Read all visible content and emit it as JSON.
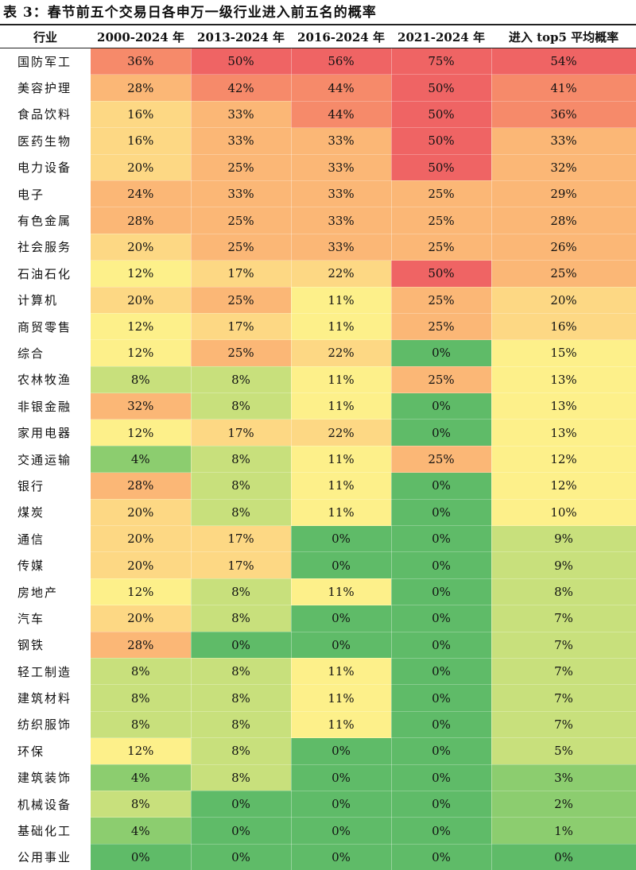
{
  "title": "表 3：春节前五个交易日各申万一级行业进入前五名的概率",
  "headers": [
    "行业",
    "2000-2024 年",
    "2013-2024 年",
    "2016-2024 年",
    "2021-2024 年",
    "进入 top5 平均概率"
  ],
  "rows": [
    {
      "industry": "国防军工",
      "values": [
        "36%",
        "50%",
        "56%",
        "75%",
        "54%"
      ]
    },
    {
      "industry": "美容护理",
      "values": [
        "28%",
        "42%",
        "44%",
        "50%",
        "41%"
      ]
    },
    {
      "industry": "食品饮料",
      "values": [
        "16%",
        "33%",
        "44%",
        "50%",
        "36%"
      ]
    },
    {
      "industry": "医药生物",
      "values": [
        "16%",
        "33%",
        "33%",
        "50%",
        "33%"
      ]
    },
    {
      "industry": "电力设备",
      "values": [
        "20%",
        "25%",
        "33%",
        "50%",
        "32%"
      ]
    },
    {
      "industry": "电子",
      "values": [
        "24%",
        "33%",
        "33%",
        "25%",
        "29%"
      ]
    },
    {
      "industry": "有色金属",
      "values": [
        "28%",
        "25%",
        "33%",
        "25%",
        "28%"
      ]
    },
    {
      "industry": "社会服务",
      "values": [
        "20%",
        "25%",
        "33%",
        "25%",
        "26%"
      ]
    },
    {
      "industry": "石油石化",
      "values": [
        "12%",
        "17%",
        "22%",
        "50%",
        "25%"
      ]
    },
    {
      "industry": "计算机",
      "values": [
        "20%",
        "25%",
        "11%",
        "25%",
        "20%"
      ]
    },
    {
      "industry": "商贸零售",
      "values": [
        "12%",
        "17%",
        "11%",
        "25%",
        "16%"
      ]
    },
    {
      "industry": "综合",
      "values": [
        "12%",
        "25%",
        "22%",
        "0%",
        "15%"
      ]
    },
    {
      "industry": "农林牧渔",
      "values": [
        "8%",
        "8%",
        "11%",
        "25%",
        "13%"
      ]
    },
    {
      "industry": "非银金融",
      "values": [
        "32%",
        "8%",
        "11%",
        "0%",
        "13%"
      ]
    },
    {
      "industry": "家用电器",
      "values": [
        "12%",
        "17%",
        "22%",
        "0%",
        "13%"
      ]
    },
    {
      "industry": "交通运输",
      "values": [
        "4%",
        "8%",
        "11%",
        "25%",
        "12%"
      ]
    },
    {
      "industry": "银行",
      "values": [
        "28%",
        "8%",
        "11%",
        "0%",
        "12%"
      ]
    },
    {
      "industry": "煤炭",
      "values": [
        "20%",
        "8%",
        "11%",
        "0%",
        "10%"
      ]
    },
    {
      "industry": "通信",
      "values": [
        "20%",
        "17%",
        "0%",
        "0%",
        "9%"
      ]
    },
    {
      "industry": "传媒",
      "values": [
        "20%",
        "17%",
        "0%",
        "0%",
        "9%"
      ]
    },
    {
      "industry": "房地产",
      "values": [
        "12%",
        "8%",
        "11%",
        "0%",
        "8%"
      ]
    },
    {
      "industry": "汽车",
      "values": [
        "20%",
        "8%",
        "0%",
        "0%",
        "7%"
      ]
    },
    {
      "industry": "钢铁",
      "values": [
        "28%",
        "0%",
        "0%",
        "0%",
        "7%"
      ]
    },
    {
      "industry": "轻工制造",
      "values": [
        "8%",
        "8%",
        "11%",
        "0%",
        "7%"
      ]
    },
    {
      "industry": "建筑材料",
      "values": [
        "8%",
        "8%",
        "11%",
        "0%",
        "7%"
      ]
    },
    {
      "industry": "纺织服饰",
      "values": [
        "8%",
        "8%",
        "11%",
        "0%",
        "7%"
      ]
    },
    {
      "industry": "环保",
      "values": [
        "12%",
        "8%",
        "0%",
        "0%",
        "5%"
      ]
    },
    {
      "industry": "建筑装饰",
      "values": [
        "4%",
        "8%",
        "0%",
        "0%",
        "3%"
      ]
    },
    {
      "industry": "机械设备",
      "values": [
        "8%",
        "0%",
        "0%",
        "0%",
        "2%"
      ]
    },
    {
      "industry": "基础化工",
      "values": [
        "4%",
        "0%",
        "0%",
        "0%",
        "1%"
      ]
    },
    {
      "industry": "公用事业",
      "values": [
        "0%",
        "0%",
        "0%",
        "0%",
        "0%"
      ]
    }
  ],
  "colors": {
    "red": "#ef6464",
    "orange_red": "#f68a6a",
    "orange": "#fbb776",
    "light_orange": "#fdd884",
    "yellow": "#fdf08a",
    "light_green": "#c8e07c",
    "green": "#8ccd6f",
    "dark_green": "#5fbb68"
  }
}
